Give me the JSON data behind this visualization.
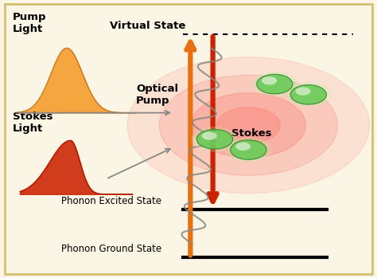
{
  "bg_color": "#faf5e4",
  "border_color": "#d4c070",
  "labels": {
    "pump_light": "Pump\nLight",
    "stokes_light": "Stokes\nLight",
    "virtual_state": "Virtual State",
    "optical_pump": "Optical\nPump",
    "stokes": "Stokes",
    "phonon_excited": "Phonon Excited State",
    "phonon_ground": "Phonon Ground State"
  },
  "energy_levels": {
    "virtual": 0.88,
    "phonon_excited": 0.245,
    "phonon_ground": 0.07
  },
  "pump_arrow_color": "#e87010",
  "stokes_arrow_color": "#cc2200",
  "pump_peak_color": "#f5a030",
  "stokes_peak_color": "#cc2200",
  "molecule_color": "#55cc55",
  "molecule_edge_color": "#228822",
  "wave_color": "#888880",
  "font_size_labels": 9.5,
  "font_size_state": 8.5
}
